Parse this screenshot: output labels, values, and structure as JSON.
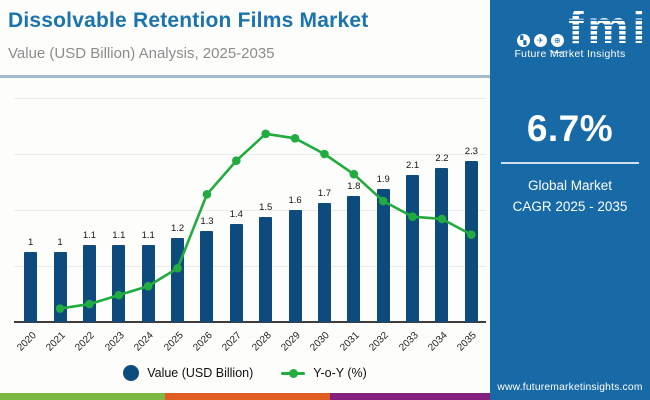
{
  "header": {
    "title": "Dissolvable Retention Films Market",
    "subtitle": "Value (USD Billion) Analysis, 2025-2035"
  },
  "logo": {
    "word": "fmi",
    "caption": "Future Market Insights",
    "icons": [
      {
        "name": "map-icon",
        "glyph": "▚"
      },
      {
        "name": "plane-icon",
        "glyph": "✈"
      },
      {
        "name": "globe-icon",
        "glyph": "⊕"
      }
    ]
  },
  "panel": {
    "cagr_value": "6.7%",
    "cagr_label_line1": "Global Market",
    "cagr_label_line2": "CAGR 2025 - 2035",
    "website": "www.futuremarketinsights.com"
  },
  "legend": {
    "items": [
      {
        "label": "Value (USD Billion)",
        "marker": "circle",
        "color": "#0D4B7C"
      },
      {
        "label": "Y-o-Y (%)",
        "marker": "line-dot",
        "color": "#22AB3F"
      }
    ]
  },
  "colors": {
    "title_blue": "#1B74AE",
    "panel_blue": "#176AA6",
    "bar_navy": "#0D4B7C",
    "line_green": "#22AB3F",
    "subtitle_gray": "#8C8C8C",
    "header_divider": "#A6BCCB",
    "brand_strip": [
      "#7CB843",
      "#E05C20",
      "#84217E"
    ]
  },
  "chart_data": {
    "type": "bar",
    "subtype": "bar+line combo",
    "title": "Dissolvable Retention Films Market",
    "categories": [
      "2020",
      "2021",
      "2022",
      "2023",
      "2024",
      "2025",
      "2026",
      "2027",
      "2028",
      "2029",
      "2030",
      "2031",
      "2032",
      "2033",
      "2034",
      "2035"
    ],
    "series": [
      {
        "name": "Value (USD Billion)",
        "type": "bar",
        "values": [
          1,
          1,
          1.1,
          1.1,
          1.1,
          1.2,
          1.3,
          1.4,
          1.5,
          1.6,
          1.7,
          1.8,
          1.9,
          2.1,
          2.2,
          2.3
        ],
        "labels": [
          "1",
          "1",
          "1.1",
          "1.1",
          "1.1",
          "1.2",
          "1.3",
          "1.4",
          "1.5",
          "1.6",
          "1.7",
          "1.8",
          "1.9",
          "2.1",
          "2.2",
          "2.3"
        ]
      },
      {
        "name": "Y-o-Y (%)",
        "type": "line",
        "values": [
          null,
          0.6,
          0.8,
          1.2,
          1.6,
          2.4,
          5.7,
          7.2,
          8.4,
          8.2,
          7.5,
          6.6,
          5.4,
          4.7,
          4.6,
          3.9
        ],
        "note": "estimated from plotted line; no y-o-y axis labels are shown in the figure"
      }
    ],
    "value_axis": {
      "min": 0,
      "max": 3.2,
      "gridline_step": 0.8,
      "labels_visible": false
    },
    "yoy_axis": {
      "min": 0,
      "max": 10,
      "labels_visible": false
    },
    "grid": true,
    "bar_data_labels_visible": true,
    "legend_position": "bottom"
  }
}
